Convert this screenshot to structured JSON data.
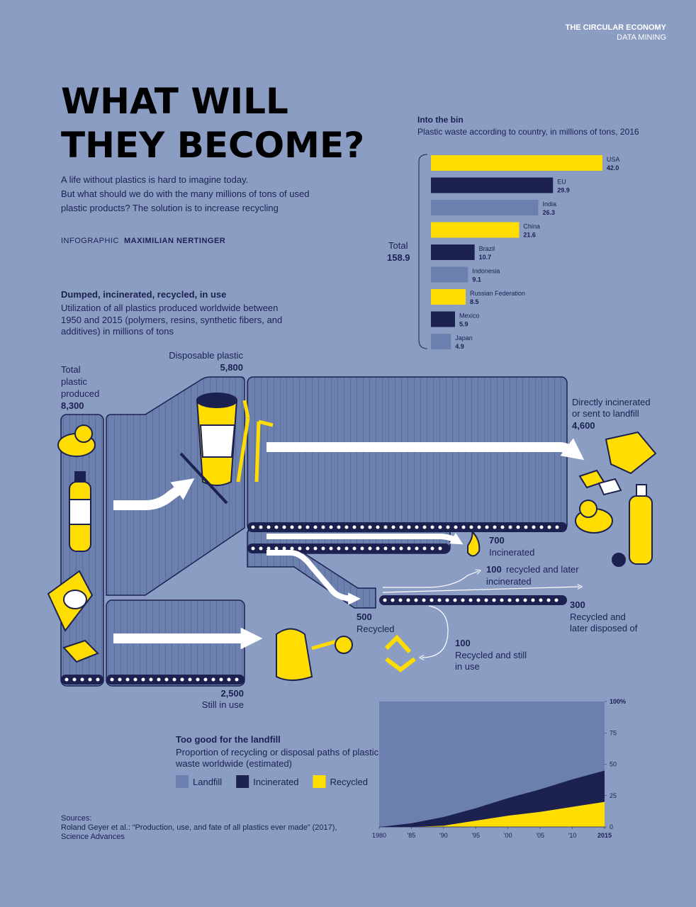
{
  "header": {
    "section": "THE CIRCULAR ECONOMY",
    "subsection": "DATA MINING"
  },
  "title": [
    "WHAT WILL",
    "THEY BECOME?"
  ],
  "intro": [
    "A life without plastics is hard to imagine today.",
    "But what should we do with the many millions of tons of used",
    "plastic products? The solution is to increase recycling"
  ],
  "credit": {
    "label": "INFOGRAPHIC",
    "author": "MAXIMILIAN NERTINGER"
  },
  "flow": {
    "title": "Dumped, incinerated, recycled, in use",
    "subtitle": [
      "Utilization of all plastics produced worldwide between",
      "1950 and 2015 (polymers, resins, synthetic fibers, and",
      "additives) in millions of tons"
    ],
    "total": {
      "label": [
        "Total",
        "plastic",
        "produced"
      ],
      "value": "8,300"
    },
    "disposable": {
      "label": "Disposable plastic",
      "value": "5,800"
    },
    "direct": {
      "label": [
        "Directly incinerated",
        "or sent to landfill"
      ],
      "value": "4,600"
    },
    "incinerated": {
      "value": "700",
      "label": "Incinerated"
    },
    "recycled": {
      "value": "500",
      "label": "Recycled"
    },
    "recycled_incinerated": {
      "value": "100",
      "label": [
        "recycled and later",
        "incinerated"
      ]
    },
    "recycled_disposed": {
      "value": "300",
      "label": [
        "Recycled and",
        "later disposed of"
      ]
    },
    "recycled_in_use": {
      "value": "100",
      "label": [
        "Recycled and still",
        "in use"
      ]
    },
    "still_in_use": {
      "value": "2,500",
      "label": "Still in use"
    }
  },
  "chart_data": [
    {
      "type": "bar",
      "title": "Into the bin",
      "subtitle": "Plastic waste according to country, in millions of tons, 2016",
      "categories": [
        "USA",
        "EU",
        "India",
        "China",
        "Brazil",
        "Indonesia",
        "Russian Federation",
        "Mexico",
        "Japan"
      ],
      "values": [
        42.0,
        29.9,
        26.3,
        21.6,
        10.7,
        9.1,
        8.5,
        5.9,
        4.9
      ],
      "value_labels": [
        "42.0",
        "29.9",
        "26.3",
        "21.6",
        "10.7",
        "9.1",
        "8.5",
        "5.9",
        "4.9"
      ],
      "colors": [
        "#ffdd00",
        "#1c2150",
        "#6b80ae",
        "#ffdd00",
        "#1c2150",
        "#6b80ae",
        "#ffdd00",
        "#1c2150",
        "#6b80ae"
      ],
      "total": {
        "label": "Total",
        "value": "158.9"
      }
    },
    {
      "type": "stacked-area",
      "title": "Too good for the landfill",
      "subtitle": [
        "Proportion of recycling or disposal paths of plastic",
        "waste worldwide (estimated)"
      ],
      "x": [
        1980,
        1985,
        1990,
        1995,
        2000,
        2005,
        2010,
        2015
      ],
      "xlim": [
        1980,
        2015
      ],
      "xticks": [
        1980,
        {
          "value": 1985,
          "label": "'85"
        },
        {
          "value": 1990,
          "label": "'90"
        },
        {
          "value": 1995,
          "label": "'95"
        },
        {
          "value": 2000,
          "label": "'00"
        },
        {
          "value": 2005,
          "label": "'05"
        },
        {
          "value": 2010,
          "label": "'10"
        },
        2015
      ],
      "ylim": [
        0,
        100
      ],
      "yticks": [
        0,
        25,
        50,
        75,
        {
          "value": 100,
          "label": "100%"
        }
      ],
      "series": [
        {
          "name": "Landfill",
          "color": "#6b80ae",
          "values": [
            100,
            97,
            92,
            85,
            77,
            70,
            62,
            55
          ]
        },
        {
          "name": "Incinerated",
          "color": "#1c2150",
          "values": [
            0,
            3,
            7,
            10,
            14,
            18,
            22,
            25
          ]
        },
        {
          "name": "Recycled",
          "color": "#ffdd00",
          "values": [
            0,
            0,
            1,
            5,
            9,
            12,
            16,
            20
          ]
        }
      ]
    }
  ],
  "sources": [
    "Sources:",
    "Roland Geyer et al.: “Production, use, and fate of all plastics ever made” (2017),",
    "Science Advances"
  ]
}
